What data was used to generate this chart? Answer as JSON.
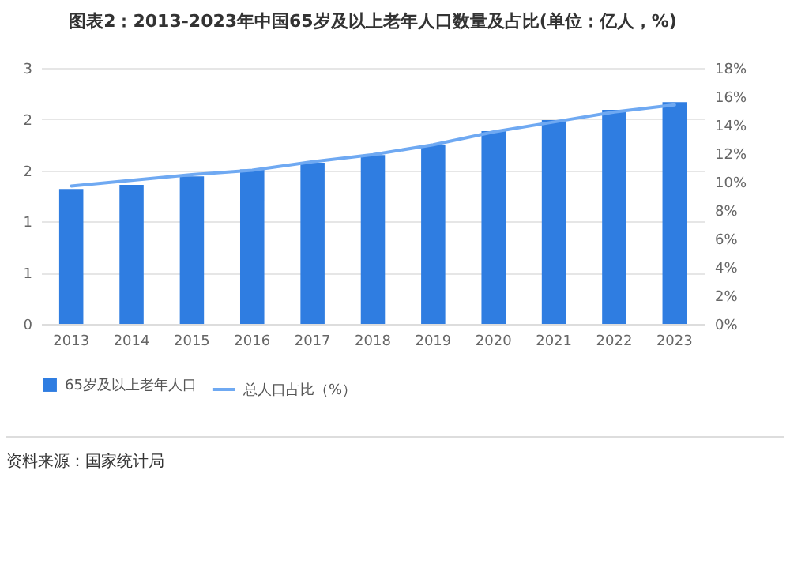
{
  "chart_data": {
    "type": "bar",
    "title": "图表2：2013-2023年中国65岁及以上老年人口数量及占比(单位：亿人，%)",
    "categories": [
      "2013",
      "2014",
      "2015",
      "2016",
      "2017",
      "2018",
      "2019",
      "2020",
      "2021",
      "2022",
      "2023"
    ],
    "series": [
      {
        "name": "65岁及以上老年人口",
        "color": "#2f7de1",
        "values": [
          1.58,
          1.63,
          1.73,
          1.81,
          1.89,
          1.98,
          2.1,
          2.26,
          2.39,
          2.51,
          2.6
        ]
      },
      {
        "name": "总人口占比（%）",
        "type": "line",
        "axis": "y2",
        "color": "#6fa9f2",
        "values": [
          9.7,
          10.1,
          10.5,
          10.8,
          11.4,
          11.9,
          12.6,
          13.5,
          14.2,
          14.9,
          15.4
        ]
      }
    ],
    "ylim": [
      0,
      3
    ],
    "yticks": [
      0,
      {
        "value": 0.6,
        "label": "1"
      },
      {
        "value": 1.2,
        "label": "1"
      },
      {
        "value": 1.8,
        "label": "2"
      },
      {
        "value": 2.4,
        "label": "2"
      },
      3
    ],
    "y2lim": [
      0,
      18
    ],
    "y2ticks": [
      {
        "value": 0,
        "label": "0%"
      },
      {
        "value": 2,
        "label": "2%"
      },
      {
        "value": 4,
        "label": "4%"
      },
      {
        "value": 6,
        "label": "6%"
      },
      {
        "value": 8,
        "label": "8%"
      },
      {
        "value": 10,
        "label": "10%"
      },
      {
        "value": 12,
        "label": "12%"
      },
      {
        "value": 14,
        "label": "14%"
      },
      {
        "value": 16,
        "label": "16%"
      },
      {
        "value": 18,
        "label": "18%"
      }
    ],
    "grid": "y",
    "legend": "bottom",
    "annotations": [
      "资料来源：国家统计局"
    ]
  }
}
